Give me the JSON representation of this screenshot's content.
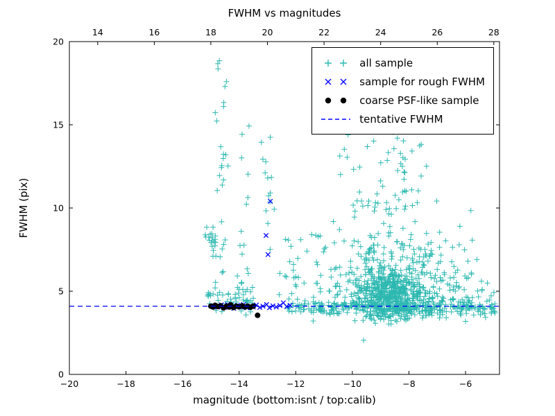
{
  "figure": {
    "title": "FWHM vs magnitudes",
    "xlabel": "magnitude (bottom:isnt / top:calib)",
    "ylabel": "FWHM (pix)",
    "background_color": "#ffffff",
    "frame_color": "#000000"
  },
  "legend": {
    "items": [
      {
        "label": "all sample",
        "marker": "plus",
        "color": "#2cb8b0"
      },
      {
        "label": "sample for rough FWHM",
        "marker": "x",
        "color": "#0000ff"
      },
      {
        "label": "coarse PSF-like sample",
        "marker": "dot",
        "color": "#000000"
      },
      {
        "label": "tentative FWHM",
        "marker": "dashed-line",
        "color": "#0000ff"
      }
    ]
  },
  "chart_data": {
    "type": "scatter",
    "title": "FWHM vs magnitudes",
    "xlabel": "magnitude (bottom:isnt / top:calib)",
    "ylabel": "FWHM (pix)",
    "x_bottom_range": [
      -20,
      -4.8
    ],
    "x_bottom_ticks": [
      -20,
      -18,
      -16,
      -14,
      -12,
      -10,
      -8,
      -6
    ],
    "x_top_range": [
      13.0,
      28.2
    ],
    "x_top_ticks": [
      14,
      16,
      18,
      20,
      22,
      24,
      26,
      28
    ],
    "y_range": [
      0,
      20
    ],
    "y_ticks": [
      0,
      5,
      10,
      15,
      20
    ],
    "grid": false,
    "legend_position": "upper right",
    "tentative_fwhm": 4.1,
    "series": [
      {
        "name": "all sample",
        "marker": "plus",
        "color": "#2cb8b0",
        "clusters": [
          {
            "n": 550,
            "x": [
              "n",
              -8.65,
              0.7
            ],
            "y": [
              "n",
              4.75,
              0.75
            ],
            "ylim": [
              3.0,
              8.5
            ]
          },
          {
            "n": 230,
            "x": [
              "n",
              -8.75,
              1.05
            ],
            "y": [
              "n",
              6.3,
              1.5
            ],
            "ylim": [
              3.2,
              11.5
            ]
          },
          {
            "n": 60,
            "x": [
              "n",
              -8.85,
              0.8
            ],
            "y": [
              "n",
              11.4,
              1.5
            ],
            "ylim": [
              8.5,
              14.6
            ]
          },
          {
            "n": 280,
            "x": [
              "u",
              -12.3,
              -4.95
            ],
            "y": [
              "n",
              4.0,
              0.22
            ]
          },
          {
            "n": 70,
            "x": [
              "u",
              -7.6,
              -4.9
            ],
            "y": [
              "n",
              4.6,
              0.85
            ],
            "ylim": [
              3.0,
              7.4
            ]
          },
          {
            "n": 55,
            "x": [
              "u",
              -15.15,
              -13.5
            ],
            "y": [
              "n",
              4.4,
              0.45
            ],
            "ylim": [
              3.5,
              6.0
            ]
          },
          {
            "n": 20,
            "x": [
              "n",
              -14.95,
              0.1
            ],
            "y": [
              "n",
              8.1,
              0.4
            ]
          },
          {
            "n": 26,
            "x": [
              "n",
              -14.62,
              0.1
            ],
            "y": [
              "u",
              4.6,
              19.0
            ]
          },
          {
            "n": 15,
            "x": [
              "n",
              -13.88,
              0.1
            ],
            "y": [
              "u",
              5.0,
              17.2
            ]
          },
          {
            "n": 13,
            "x": [
              "n",
              -12.95,
              0.12
            ],
            "y": [
              "u",
              6.5,
              14.3
            ]
          },
          {
            "n": 28,
            "x": [
              "u",
              -12.6,
              -10.9
            ],
            "y": [
              "u",
              4.4,
              8.6
            ]
          },
          {
            "n": 12,
            "x": [
              "u",
              -7.4,
              -5.2
            ],
            "y": [
              "u",
              5.2,
              9.0
            ]
          }
        ],
        "points": [
          [
            -14.7,
            18.85
          ],
          [
            -14.5,
            17.3
          ],
          [
            -9.6,
            2.05
          ],
          [
            -12.9,
            14.25
          ],
          [
            -10.15,
            14.4
          ],
          [
            -8.55,
            14.55
          ],
          [
            -6.2,
            8.9
          ],
          [
            -5.6,
            6.9
          ]
        ]
      },
      {
        "name": "sample for rough FWHM",
        "marker": "x",
        "color": "#0000ff",
        "points": [
          [
            -14.88,
            4.12
          ],
          [
            -14.76,
            4.04
          ],
          [
            -14.63,
            4.18
          ],
          [
            -14.5,
            4.02
          ],
          [
            -14.41,
            4.2
          ],
          [
            -14.3,
            4.1
          ],
          [
            -14.19,
            3.97
          ],
          [
            -14.06,
            4.15
          ],
          [
            -13.96,
            4.06
          ],
          [
            -13.85,
            4.2
          ],
          [
            -13.73,
            4.0
          ],
          [
            -13.61,
            4.12
          ],
          [
            -13.5,
            4.05
          ],
          [
            -13.39,
            4.17
          ],
          [
            -13.27,
            4.02
          ],
          [
            -13.16,
            4.1
          ],
          [
            -13.03,
            4.2
          ],
          [
            -12.93,
            4.0
          ],
          [
            -12.81,
            4.12
          ],
          [
            -12.69,
            4.05
          ],
          [
            -12.56,
            4.14
          ],
          [
            -12.44,
            4.3
          ],
          [
            -12.32,
            4.08
          ],
          [
            -12.2,
            4.15
          ],
          [
            -12.9,
            10.4
          ],
          [
            -13.05,
            8.35
          ],
          [
            -12.98,
            7.2
          ]
        ]
      },
      {
        "name": "coarse PSF-like sample",
        "marker": "dot",
        "color": "#000000",
        "points": [
          [
            -15.0,
            4.1
          ],
          [
            -14.92,
            4.05
          ],
          [
            -14.85,
            4.15
          ],
          [
            -14.75,
            4.08
          ],
          [
            -14.65,
            4.12
          ],
          [
            -14.55,
            4.0
          ],
          [
            -14.45,
            4.1
          ],
          [
            -14.35,
            4.05
          ],
          [
            -14.3,
            4.18
          ],
          [
            -14.2,
            4.02
          ],
          [
            -14.1,
            4.1
          ],
          [
            -14.0,
            4.06
          ],
          [
            -13.9,
            4.12
          ],
          [
            -13.8,
            4.05
          ],
          [
            -13.7,
            4.1
          ],
          [
            -13.6,
            4.04
          ],
          [
            -13.5,
            4.1
          ],
          [
            -13.35,
            3.55
          ]
        ]
      }
    ],
    "tentative_fwhm_line": {
      "name": "tentative FWHM",
      "y": 4.1,
      "style": "dashed",
      "color": "#0000ff"
    }
  }
}
